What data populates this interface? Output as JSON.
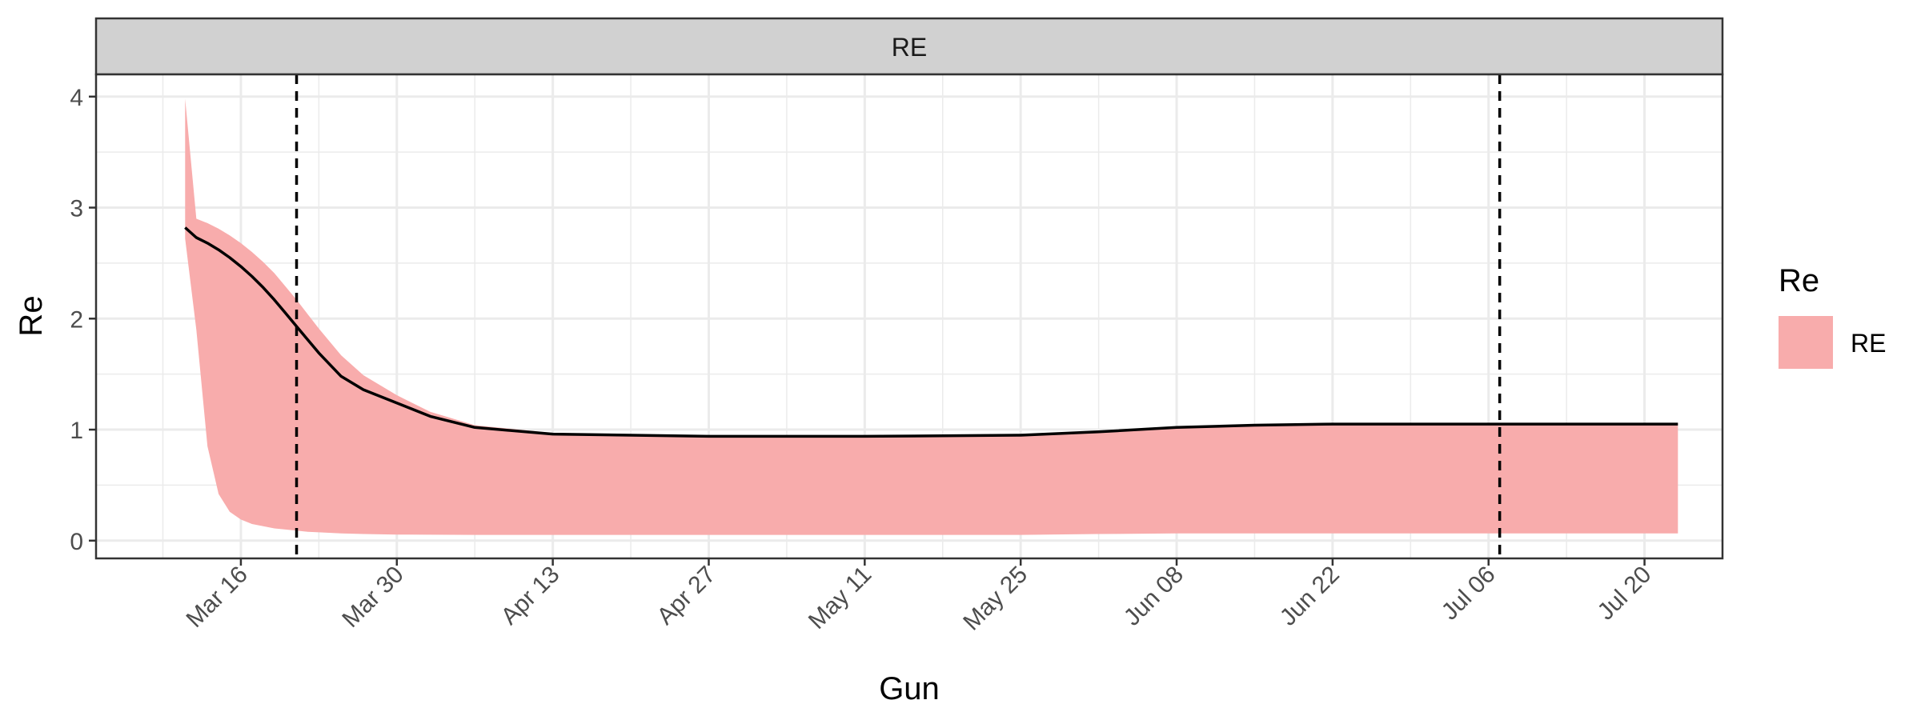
{
  "chart_data": {
    "type": "line",
    "facet_label": "RE",
    "xlabel": "Gun",
    "ylabel": "Re",
    "xlim": [
      "2020-03-03",
      "2020-07-27"
    ],
    "ylim": [
      -0.16,
      4.2
    ],
    "x_ticks": [
      {
        "date": "2020-03-16",
        "label": "Mar 16"
      },
      {
        "date": "2020-03-30",
        "label": "Mar 30"
      },
      {
        "date": "2020-04-13",
        "label": "Apr 13"
      },
      {
        "date": "2020-04-27",
        "label": "Apr 27"
      },
      {
        "date": "2020-05-11",
        "label": "May 11"
      },
      {
        "date": "2020-05-25",
        "label": "May 25"
      },
      {
        "date": "2020-06-08",
        "label": "Jun 08"
      },
      {
        "date": "2020-06-22",
        "label": "Jun 22"
      },
      {
        "date": "2020-07-06",
        "label": "Jul 06"
      },
      {
        "date": "2020-07-20",
        "label": "Jul 20"
      }
    ],
    "y_ticks": [
      0,
      1,
      2,
      3,
      4
    ],
    "grid": true,
    "legend": {
      "title": "Re",
      "position": "right",
      "items": [
        {
          "label": "RE",
          "color": "#F8ACAC"
        }
      ]
    },
    "series": [
      {
        "name": "RE",
        "line_color": "#000000",
        "ribbon_color": "#F8ACAC",
        "points": [
          {
            "x": "2020-03-11",
            "y": 2.82,
            "lower": 2.72,
            "upper": 3.98
          },
          {
            "x": "2020-03-12",
            "y": 2.73,
            "lower": 1.9,
            "upper": 2.9
          },
          {
            "x": "2020-03-13",
            "y": 2.68,
            "lower": 0.85,
            "upper": 2.86
          },
          {
            "x": "2020-03-14",
            "y": 2.62,
            "lower": 0.42,
            "upper": 2.81
          },
          {
            "x": "2020-03-15",
            "y": 2.55,
            "lower": 0.26,
            "upper": 2.75
          },
          {
            "x": "2020-03-16",
            "y": 2.47,
            "lower": 0.19,
            "upper": 2.68
          },
          {
            "x": "2020-03-17",
            "y": 2.38,
            "lower": 0.15,
            "upper": 2.6
          },
          {
            "x": "2020-03-18",
            "y": 2.28,
            "lower": 0.13,
            "upper": 2.51
          },
          {
            "x": "2020-03-19",
            "y": 2.17,
            "lower": 0.11,
            "upper": 2.41
          },
          {
            "x": "2020-03-20",
            "y": 2.05,
            "lower": 0.1,
            "upper": 2.29
          },
          {
            "x": "2020-03-21",
            "y": 1.93,
            "lower": 0.09,
            "upper": 2.17
          },
          {
            "x": "2020-03-22",
            "y": 1.81,
            "lower": 0.08,
            "upper": 2.04
          },
          {
            "x": "2020-03-23",
            "y": 1.69,
            "lower": 0.075,
            "upper": 1.91
          },
          {
            "x": "2020-03-25",
            "y": 1.48,
            "lower": 0.065,
            "upper": 1.67
          },
          {
            "x": "2020-03-27",
            "y": 1.36,
            "lower": 0.06,
            "upper": 1.49
          },
          {
            "x": "2020-03-30",
            "y": 1.24,
            "lower": 0.055,
            "upper": 1.31
          },
          {
            "x": "2020-04-02",
            "y": 1.12,
            "lower": 0.053,
            "upper": 1.16
          },
          {
            "x": "2020-04-06",
            "y": 1.02,
            "lower": 0.052,
            "upper": 1.04
          },
          {
            "x": "2020-04-13",
            "y": 0.96,
            "lower": 0.052,
            "upper": 0.97
          },
          {
            "x": "2020-04-27",
            "y": 0.94,
            "lower": 0.052,
            "upper": 0.95
          },
          {
            "x": "2020-05-11",
            "y": 0.94,
            "lower": 0.052,
            "upper": 0.95
          },
          {
            "x": "2020-05-25",
            "y": 0.95,
            "lower": 0.052,
            "upper": 0.96
          },
          {
            "x": "2020-06-01",
            "y": 0.98,
            "lower": 0.06,
            "upper": 0.99
          },
          {
            "x": "2020-06-08",
            "y": 1.02,
            "lower": 0.065,
            "upper": 1.03
          },
          {
            "x": "2020-06-15",
            "y": 1.04,
            "lower": 0.065,
            "upper": 1.05
          },
          {
            "x": "2020-06-22",
            "y": 1.05,
            "lower": 0.065,
            "upper": 1.06
          },
          {
            "x": "2020-07-06",
            "y": 1.05,
            "lower": 0.065,
            "upper": 1.06
          },
          {
            "x": "2020-07-20",
            "y": 1.05,
            "lower": 0.065,
            "upper": 1.06
          },
          {
            "x": "2020-07-23",
            "y": 1.05,
            "lower": 0.065,
            "upper": 1.06
          }
        ]
      }
    ],
    "vlines": [
      {
        "x": "2020-03-21",
        "style": "dashed",
        "color": "#000000"
      },
      {
        "x": "2020-07-07",
        "style": "dashed",
        "color": "#000000"
      }
    ]
  }
}
